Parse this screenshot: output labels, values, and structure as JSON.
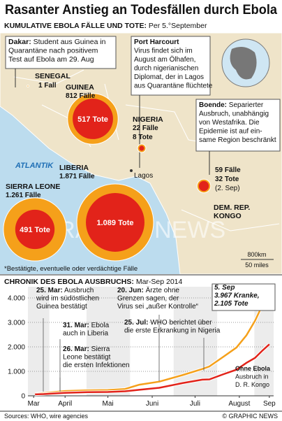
{
  "header": {
    "title": "Rasanter Anstieg an Todesfällen durch Ebola",
    "subtitle_lead": "KUMULATIVE EBOLA FÄLLE UND TOTE:",
    "subtitle_rest": " Per 5.°September"
  },
  "map": {
    "sea_label": "ATLANTIK",
    "city_label": "Lagos",
    "watermark": "GRAPHIC NEWS",
    "footnote": "*Bestätigte, eventuelle oder verdächtige Fälle",
    "scale": [
      "800km",
      "50 miles"
    ],
    "callouts": [
      {
        "lead": "Dakar:",
        "lines": [
          " Student aus Guinea in",
          "Quarantäne nach positivem",
          "Test auf Ebola am 29. Aug"
        ]
      },
      {
        "lead": "Port Harcourt",
        "lines": [
          "Virus findet sich im",
          "August am Ölhafen,",
          "durch nigerianischen",
          "Diplomat, der in Lagos",
          "aus Quarantäne flüchtete"
        ]
      },
      {
        "lead": "Boende:",
        "lines": [
          " Separierter",
          "Ausbruch, unabhängig",
          "von Westafrika. Die",
          "Epidemie ist auf ein-",
          "same Region beschränkt"
        ]
      }
    ],
    "countries": [
      {
        "name": [
          "SENEGAL"
        ],
        "cases": 1,
        "cases_label": "1 Fall"
      },
      {
        "name": [
          "GUINEA"
        ],
        "cases": 812,
        "cases_label": "812 Fälle",
        "deaths": 517,
        "deaths_label": "517 Tote"
      },
      {
        "name": [
          "NIGERIA"
        ],
        "cases": 22,
        "cases_label": "22 Fälle",
        "deaths": 8,
        "deaths_label": "8 Tote"
      },
      {
        "name": [
          "LIBERIA"
        ],
        "cases": 1871,
        "cases_label": "1.871 Fälle",
        "deaths": 1089,
        "deaths_label": "1.089 Tote"
      },
      {
        "name": [
          "SIERRA LEONE"
        ],
        "cases": 1261,
        "cases_label": "1.261 Fälle",
        "deaths": 491,
        "deaths_label": "491 Tote"
      },
      {
        "name": [
          "DEM. REP.",
          "KONGO"
        ],
        "cases": 59,
        "cases_label": "59 Fälle",
        "deaths": 32,
        "deaths_label": "32 Tote",
        "note": "(2. Sep)"
      }
    ]
  },
  "chart_data": {
    "type": "line",
    "title": "CHRONIK DES EBOLA AUSBRUCHS:",
    "subtitle": " Mar-Sep 2014",
    "x": [
      "2014-03-25",
      "2014-03-31",
      "2014-04-15",
      "2014-05-01",
      "2014-05-15",
      "2014-05-27",
      "2014-06-06",
      "2014-06-20",
      "2014-07-06",
      "2014-07-20",
      "2014-07-25",
      "2014-08-04",
      "2014-08-13",
      "2014-08-20",
      "2014-08-26",
      "2014-08-31",
      "2014-09-05"
    ],
    "series": [
      {
        "name": "Fälle",
        "color": "#f5a01a",
        "values": [
          86,
          112,
          197,
          226,
          233,
          281,
          453,
          581,
          844,
          1093,
          1201,
          1603,
          1975,
          2473,
          3069,
          3685,
          3967
        ]
      },
      {
        "name": "Tote",
        "color": "#e2231a",
        "values": [
          59,
          70,
          121,
          149,
          157,
          186,
          247,
          328,
          518,
          660,
          672,
          887,
          1069,
          1350,
          1552,
          1841,
          2105
        ]
      }
    ],
    "xlim": [
      "2014-03-20",
      "2014-09-08"
    ],
    "xticks": [
      {
        "value": "2014-03-24",
        "label": "Mar"
      },
      {
        "value": "2014-04-15",
        "label": "April"
      },
      {
        "value": "2014-05-15",
        "label": "Mai"
      },
      {
        "value": "2014-06-15",
        "label": "Juni"
      },
      {
        "value": "2014-07-15",
        "label": "Juli"
      },
      {
        "value": "2014-08-15",
        "label": "August"
      },
      {
        "value": "2014-09-05",
        "label": "Sep"
      }
    ],
    "ylim": [
      0,
      4000
    ],
    "yticks": [
      0,
      {
        "value": 1000,
        "label": "1.000"
      },
      {
        "value": 2000,
        "label": "2.000"
      },
      {
        "value": 3000,
        "label": "3.000"
      },
      {
        "value": 4000,
        "label": "4.000"
      }
    ],
    "grid": true,
    "annotations": [
      {
        "lead": "25. Mar:",
        "lines": [
          " Ausbruch",
          "wird im südöstlichen",
          "Guinea bestätigt"
        ]
      },
      {
        "lead": "31. Mar:",
        "lines": [
          " Ebola",
          "auch in Liberia"
        ]
      },
      {
        "lead": "26. Mar:",
        "lines": [
          " Sierra",
          "Leone bestätigt",
          "die ersten Infektionen"
        ]
      },
      {
        "lead": "20. Jun:",
        "lines": [
          " Ärzte ohne",
          "Grenzen sagen, der",
          "Virus sei „außer Kontrolle“"
        ]
      },
      {
        "lead": "25. Jul:",
        "lines": [
          " WHO berichtet über",
          "die erste Erkrankung in Nigeria"
        ]
      },
      {
        "lead": "5. Sep",
        "lines": [
          "3.967 Kranke,",
          "2.105 Tote"
        ]
      },
      {
        "lead": "Ohne Ebola",
        "lines": [
          "Ausbruch in",
          "D. R. Kongo"
        ]
      }
    ],
    "sources": "Sources: WHO, wire agencies",
    "credit": "© GRAPHIC NEWS"
  }
}
